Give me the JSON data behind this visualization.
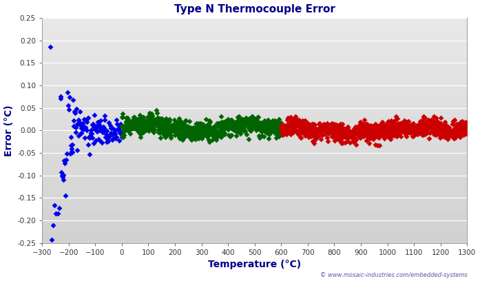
{
  "title": "Type N Thermocouple Error",
  "xlabel": "Temperature (°C)",
  "ylabel": "Error (°C)",
  "xlim": [
    -300,
    1300
  ],
  "ylim": [
    -0.25,
    0.25
  ],
  "xticks": [
    -300,
    -200,
    -100,
    0,
    100,
    200,
    300,
    400,
    500,
    600,
    700,
    800,
    900,
    1000,
    1100,
    1200,
    1300
  ],
  "yticks": [
    -0.25,
    -0.2,
    -0.15,
    -0.1,
    -0.05,
    0.0,
    0.05,
    0.1,
    0.15,
    0.2,
    0.25
  ],
  "blue_color": "#0000EE",
  "green_color": "#006400",
  "red_color": "#CC0000",
  "title_color": "#00008B",
  "axis_label_color": "#00008B",
  "watermark": "© www.mosaic-industries.com/embedded-systems",
  "watermark_color": "#5555AA",
  "marker": "D",
  "marker_size": 4,
  "seed": 42
}
